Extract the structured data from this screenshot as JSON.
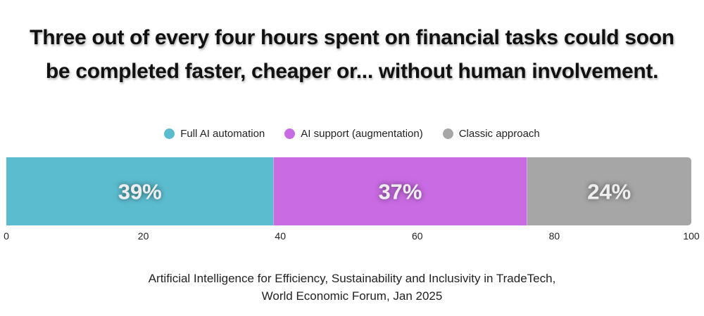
{
  "title": {
    "line1": "Three out of every four hours spent on financial tasks could soon",
    "line2": "be completed faster, cheaper or... without human involvement."
  },
  "source": {
    "line1": "Artificial Intelligence for Efficiency, Sustainability and Inclusivity in TradeTech,",
    "line2": "World Economic Forum, Jan 2025"
  },
  "chart_data": {
    "type": "bar",
    "orientation": "horizontal",
    "stacked": true,
    "categories": [
      ""
    ],
    "series": [
      {
        "name": "Full AI automation",
        "values": [
          39
        ],
        "label": "39%",
        "color": "#5bbccf"
      },
      {
        "name": "AI support (augmentation)",
        "values": [
          37
        ],
        "label": "37%",
        "color": "#c96be3"
      },
      {
        "name": "Classic approach",
        "values": [
          24
        ],
        "label": "24%",
        "color": "#a6a6a6"
      }
    ],
    "xlim": [
      0,
      100
    ],
    "xticks": [
      "0",
      "20",
      "40",
      "60",
      "80",
      "100"
    ],
    "xlabel": "",
    "ylabel": "",
    "grid": false,
    "legend_position": "top-center"
  }
}
